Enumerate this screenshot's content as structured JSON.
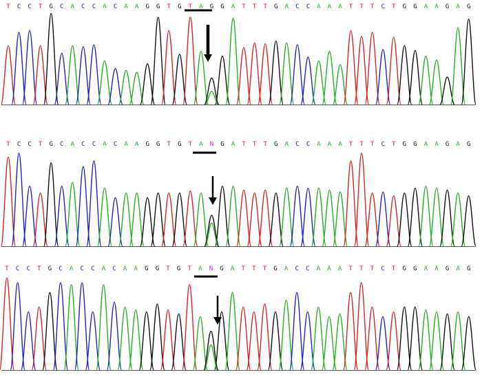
{
  "chart_data": [
    {
      "type": "line",
      "title": "",
      "xlabel": "",
      "ylabel": "",
      "sequence": "TCCTGCACCACAAGGTGTAGGATTTGACCAAATTTCTGGAAGAG",
      "bases": [
        "T",
        "C",
        "C",
        "T",
        "G",
        "C",
        "A",
        "C",
        "C",
        "A",
        "C",
        "A",
        "A",
        "G",
        "G",
        "T",
        "G",
        "T",
        "A",
        "G",
        "G",
        "A",
        "T",
        "T",
        "T",
        "G",
        "A",
        "C",
        "C",
        "A",
        "A",
        "A",
        "T",
        "T",
        "T",
        "C",
        "T",
        "G",
        "G",
        "A",
        "A",
        "G",
        "A",
        "G"
      ],
      "peak_heights": [
        0.62,
        0.76,
        0.78,
        0.62,
        0.96,
        0.54,
        0.62,
        0.61,
        0.63,
        0.46,
        0.38,
        0.36,
        0.34,
        0.43,
        0.92,
        0.78,
        0.53,
        0.92,
        0.56,
        0.28,
        0.51,
        0.91,
        0.6,
        0.65,
        0.64,
        0.67,
        0.65,
        0.63,
        0.5,
        0.46,
        0.56,
        0.42,
        0.78,
        0.72,
        0.76,
        0.58,
        0.71,
        0.62,
        0.57,
        0.51,
        0.47,
        0.29,
        0.81,
        0.9
      ],
      "secondary_peaks": [
        {
          "index": 19,
          "base": "A",
          "height": 0.14
        }
      ],
      "underline_bases": [
        18,
        19
      ],
      "arrow_at_base": 19
    },
    {
      "type": "line",
      "title": "",
      "xlabel": "",
      "ylabel": "",
      "sequence": "TCCTGCACCACAAGGTGTANGATTTGACCAAATTTCTGGAAGAG",
      "bases": [
        "T",
        "C",
        "C",
        "T",
        "G",
        "C",
        "A",
        "C",
        "C",
        "A",
        "C",
        "A",
        "A",
        "G",
        "G",
        "T",
        "G",
        "T",
        "A",
        "N",
        "G",
        "A",
        "T",
        "T",
        "T",
        "G",
        "A",
        "C",
        "C",
        "A",
        "A",
        "A",
        "T",
        "T",
        "T",
        "C",
        "T",
        "G",
        "G",
        "A",
        "A",
        "G",
        "A",
        "G"
      ],
      "peak_heights": [
        0.92,
        0.96,
        0.62,
        0.55,
        0.86,
        0.62,
        0.66,
        0.82,
        0.88,
        0.6,
        0.5,
        0.55,
        0.55,
        0.5,
        0.55,
        0.55,
        0.55,
        0.57,
        0.55,
        0.32,
        0.62,
        0.62,
        0.58,
        0.55,
        0.58,
        0.55,
        0.6,
        0.62,
        0.6,
        0.6,
        0.58,
        0.56,
        0.88,
        0.96,
        0.55,
        0.56,
        0.52,
        0.55,
        0.6,
        0.62,
        0.6,
        0.58,
        0.55,
        0.52
      ],
      "secondary_peaks": [
        {
          "index": 19,
          "base": "A",
          "height": 0.24
        }
      ],
      "underline_bases": [
        18,
        19
      ],
      "arrow_at_base": 19
    },
    {
      "type": "line",
      "title": "",
      "xlabel": "",
      "ylabel": "",
      "sequence": "TCCTGCACCACAAGGTGTANGATTTGACCAAATTTCTGGAAGAG",
      "bases": [
        "T",
        "C",
        "C",
        "T",
        "G",
        "C",
        "A",
        "C",
        "C",
        "A",
        "C",
        "A",
        "A",
        "G",
        "G",
        "T",
        "G",
        "T",
        "A",
        "N",
        "G",
        "A",
        "T",
        "T",
        "T",
        "G",
        "A",
        "C",
        "C",
        "A",
        "A",
        "A",
        "T",
        "T",
        "T",
        "C",
        "T",
        "G",
        "G",
        "A",
        "A",
        "G",
        "A",
        "G"
      ],
      "peak_heights": [
        0.95,
        0.9,
        0.6,
        0.65,
        0.8,
        0.9,
        0.88,
        0.9,
        0.6,
        0.88,
        0.7,
        0.65,
        0.62,
        0.6,
        0.68,
        0.62,
        0.58,
        0.88,
        0.55,
        0.4,
        0.6,
        0.8,
        0.65,
        0.6,
        0.68,
        0.6,
        0.72,
        0.8,
        0.6,
        0.65,
        0.55,
        0.58,
        0.8,
        0.9,
        0.65,
        0.55,
        0.6,
        0.65,
        0.65,
        0.62,
        0.6,
        0.58,
        0.6,
        0.55
      ],
      "secondary_peaks": [
        {
          "index": 19,
          "base": "A",
          "height": 0.26
        }
      ],
      "underline_bases": [
        18,
        19
      ],
      "arrow_at_base": 19
    }
  ],
  "base_colors": {
    "A": "#22b222",
    "C": "#2222cc",
    "G": "#111111",
    "T": "#dd2222",
    "N": "#cc22cc"
  }
}
